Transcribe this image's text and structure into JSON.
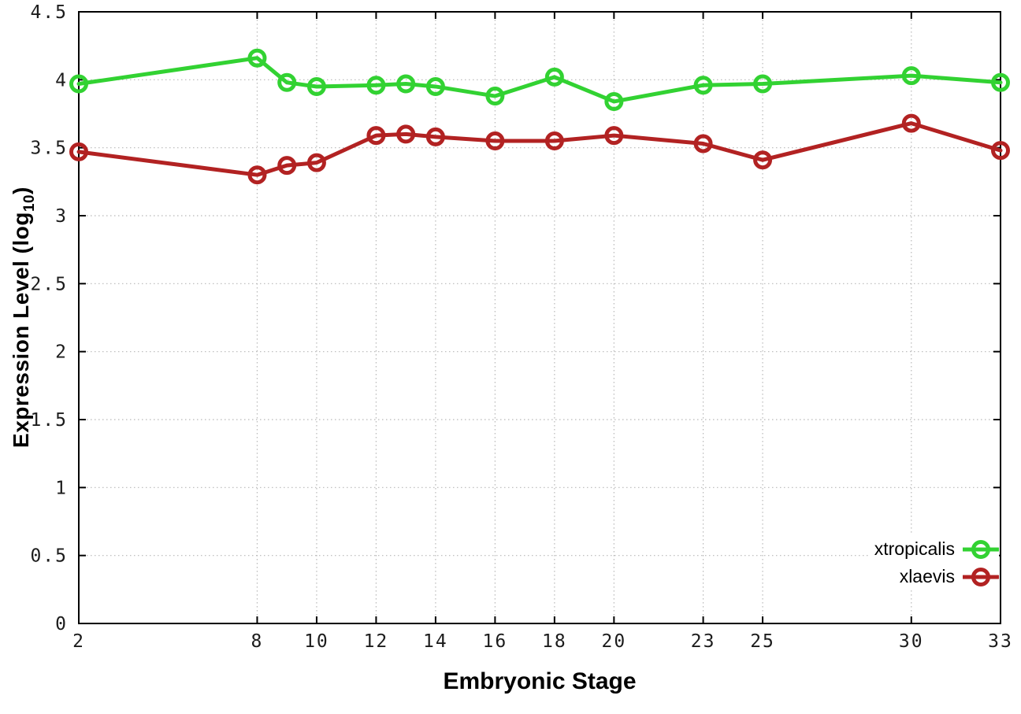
{
  "figure": {
    "background": "#ffffff"
  },
  "axis_titles": {
    "x_title": "Embryonic Stage",
    "y_title_pre": "Expression Level (log",
    "y_title_sub": "10",
    "y_title_post": ")"
  },
  "chart_data": {
    "type": "line",
    "title": "",
    "xlabel": "Embryonic Stage",
    "ylabel": "Expression Level (log10)",
    "x": [
      2,
      8,
      9,
      10,
      12,
      13,
      14,
      16,
      18,
      20,
      23,
      25,
      30,
      33
    ],
    "x_tick_values": [
      2,
      8,
      10,
      12,
      14,
      16,
      18,
      20,
      23,
      25,
      30,
      33
    ],
    "x_tick_labels": [
      "2",
      "8",
      "10",
      "12",
      "14",
      "16",
      "18",
      "20",
      "23",
      "25",
      "30",
      "33"
    ],
    "xlim": [
      2,
      33
    ],
    "ylim": [
      0,
      4.5
    ],
    "y_ticks": [
      0,
      0.5,
      1,
      1.5,
      2,
      2.5,
      3,
      3.5,
      4,
      4.5
    ],
    "y_tick_labels": [
      "0",
      "0.5",
      "1",
      "1.5",
      "2",
      "2.5",
      "3",
      "3.5",
      "4",
      "4.5"
    ],
    "grid": true,
    "grid_style": "dotted",
    "legend_position": "bottom-right",
    "marker": "open-circle",
    "series": [
      {
        "name": "xtropicalis",
        "color": "#32d232",
        "values": [
          3.97,
          4.16,
          3.98,
          3.95,
          3.96,
          3.97,
          3.95,
          3.88,
          4.02,
          3.84,
          3.96,
          3.97,
          4.03,
          3.98
        ]
      },
      {
        "name": "xlaevis",
        "color": "#b22222",
        "values": [
          3.47,
          3.3,
          3.37,
          3.39,
          3.59,
          3.6,
          3.58,
          3.55,
          3.55,
          3.59,
          3.53,
          3.41,
          3.68,
          3.48
        ]
      }
    ]
  },
  "style": {
    "axis_color": "#000000",
    "grid_color": "#b8b8b8",
    "tick_label_color": "#1c1c1c"
  }
}
